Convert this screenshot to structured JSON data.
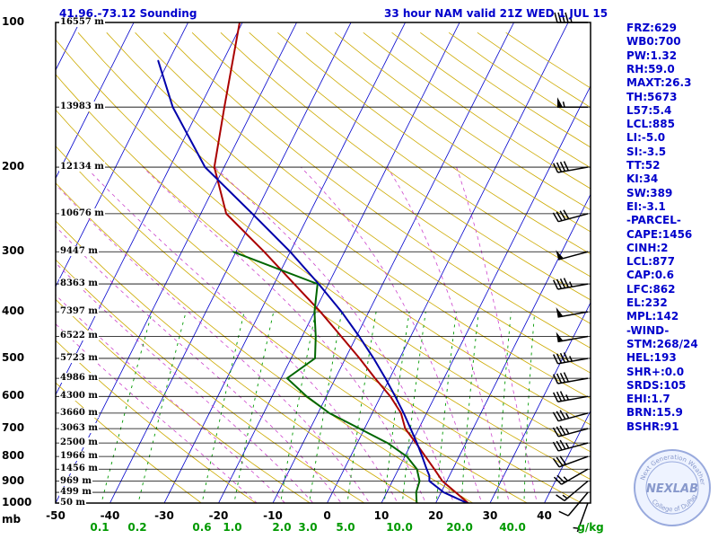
{
  "header": {
    "location": "41.96,-73.12 Sounding",
    "valid": "33 hour NAM valid 21Z WED  1 JUL 15"
  },
  "indices": [
    "FRZ:629",
    "WB0:700",
    "PW:1.32",
    "RH:59.0",
    "MAXT:26.3",
    "TH:5673",
    "L57:5.4",
    "LCL:885",
    "LI:-5.0",
    "SI:-3.5",
    "TT:52",
    "KI:34",
    "SW:389",
    "EI:-3.1",
    "-PARCEL-",
    "CAPE:1456",
    "CINH:2",
    "LCL:877",
    "CAP:0.6",
    "LFC:862",
    "EL:232",
    "MPL:142",
    "-WIND-",
    "STM:268/24",
    "HEL:193",
    "SHR+:0.0",
    "SRDS:105",
    "EHI:1.7",
    "BRN:15.9",
    "BSHR:91"
  ],
  "logo": {
    "text": "NEXLAB",
    "ring": "Next Generation Weather Lab",
    "ring2": "College of DuPage"
  },
  "colors": {
    "temperature": "#aa0000",
    "dewpoint": "#006600",
    "parcel": "#0000aa",
    "isotherm": "#0000cc",
    "dry_adiabat": "#ccaa00",
    "moist_adiabat": "#cc44cc",
    "mixing_ratio": "#009900"
  },
  "chart_data": {
    "type": "line",
    "xlabel": "",
    "ylabel": "mb",
    "pressure_levels": [
      100,
      200,
      300,
      400,
      500,
      600,
      700,
      800,
      900,
      1000
    ],
    "pressure_tick_labels": [
      "100",
      "200",
      "300",
      "400",
      "500",
      "600",
      "700",
      "800",
      "900",
      "1000"
    ],
    "temperature_ticks": [
      -50,
      -40,
      -30,
      -20,
      -10,
      0,
      10,
      20,
      30,
      40
    ],
    "temperature_tick_labels": [
      "-50",
      "-40",
      "-30",
      "-20",
      "-10",
      "0",
      "10",
      "20",
      "30",
      "40"
    ],
    "mixing_ratio_labels": [
      "0.1",
      "0.2",
      "0.6",
      "1.0",
      "2.0",
      "3.0",
      "5.0",
      "10.0",
      "20.0",
      "40.0",
      "g/kg"
    ],
    "height_labels": [
      {
        "p": 100,
        "text": "16557 m"
      },
      {
        "p": 150,
        "text": "13983 m"
      },
      {
        "p": 200,
        "text": "12134 m"
      },
      {
        "p": 250,
        "text": "10676 m"
      },
      {
        "p": 300,
        "text": "9447 m"
      },
      {
        "p": 350,
        "text": "8363 m"
      },
      {
        "p": 400,
        "text": "7397 m"
      },
      {
        "p": 450,
        "text": "6522 m"
      },
      {
        "p": 500,
        "text": "5723 m"
      },
      {
        "p": 550,
        "text": "4986 m"
      },
      {
        "p": 600,
        "text": "4300 m"
      },
      {
        "p": 650,
        "text": "3660 m"
      },
      {
        "p": 700,
        "text": "3063 m"
      },
      {
        "p": 750,
        "text": "2500 m"
      },
      {
        "p": 800,
        "text": "1966 m"
      },
      {
        "p": 850,
        "text": "1456 m"
      },
      {
        "p": 900,
        "text": "969 m"
      },
      {
        "p": 950,
        "text": "499 m"
      },
      {
        "p": 1000,
        "text": "50 m"
      }
    ],
    "series": [
      {
        "key": "temperature",
        "color": "#aa0000",
        "points": [
          [
            1005,
            26.3
          ],
          [
            950,
            22.7
          ],
          [
            900,
            19.2
          ],
          [
            850,
            16.6
          ],
          [
            800,
            13.8
          ],
          [
            750,
            10.8
          ],
          [
            700,
            7.5
          ],
          [
            650,
            5.3
          ],
          [
            600,
            1.8
          ],
          [
            550,
            -2.7
          ],
          [
            500,
            -7.4
          ],
          [
            450,
            -12.8
          ],
          [
            400,
            -18.9
          ],
          [
            350,
            -26.3
          ],
          [
            300,
            -34.8
          ],
          [
            250,
            -45.3
          ],
          [
            200,
            -51.8
          ],
          [
            150,
            -55.5
          ],
          [
            100,
            -60.5
          ]
        ]
      },
      {
        "key": "dewpoint",
        "color": "#006600",
        "points": [
          [
            1005,
            16.6
          ],
          [
            950,
            15.4
          ],
          [
            900,
            15.0
          ],
          [
            850,
            13.4
          ],
          [
            800,
            10.4
          ],
          [
            750,
            5.6
          ],
          [
            700,
            -0.9
          ],
          [
            650,
            -7.9
          ],
          [
            600,
            -13.6
          ],
          [
            550,
            -18.9
          ],
          [
            500,
            -15.6
          ],
          [
            450,
            -17.5
          ],
          [
            400,
            -20.0
          ],
          [
            350,
            -22.0
          ],
          [
            300,
            -40.5
          ]
        ]
      },
      {
        "key": "parcel",
        "color": "#0000aa",
        "points": [
          [
            1005,
            26.3
          ],
          [
            950,
            20.5
          ],
          [
            900,
            16.8
          ],
          [
            877,
            16.3
          ],
          [
            850,
            15.2
          ],
          [
            800,
            13.2
          ],
          [
            750,
            11.0
          ],
          [
            700,
            8.5
          ],
          [
            650,
            5.8
          ],
          [
            600,
            2.7
          ],
          [
            550,
            -0.8
          ],
          [
            500,
            -4.8
          ],
          [
            450,
            -9.5
          ],
          [
            400,
            -15.0
          ],
          [
            350,
            -21.8
          ],
          [
            300,
            -30.0
          ],
          [
            250,
            -40.5
          ],
          [
            200,
            -53.5
          ],
          [
            150,
            -65.0
          ],
          [
            120,
            -72.0
          ]
        ]
      }
    ],
    "winds": [
      {
        "p": 100,
        "dir": 270,
        "kt": 45
      },
      {
        "p": 150,
        "dir": 270,
        "kt": 55
      },
      {
        "p": 200,
        "dir": 260,
        "kt": 40
      },
      {
        "p": 250,
        "dir": 255,
        "kt": 40
      },
      {
        "p": 300,
        "dir": 255,
        "kt": 50
      },
      {
        "p": 350,
        "dir": 260,
        "kt": 45
      },
      {
        "p": 400,
        "dir": 260,
        "kt": 50
      },
      {
        "p": 450,
        "dir": 260,
        "kt": 50
      },
      {
        "p": 500,
        "dir": 260,
        "kt": 45
      },
      {
        "p": 550,
        "dir": 260,
        "kt": 40
      },
      {
        "p": 600,
        "dir": 260,
        "kt": 35
      },
      {
        "p": 650,
        "dir": 255,
        "kt": 35
      },
      {
        "p": 700,
        "dir": 255,
        "kt": 35
      },
      {
        "p": 750,
        "dir": 255,
        "kt": 35
      },
      {
        "p": 800,
        "dir": 250,
        "kt": 30
      },
      {
        "p": 850,
        "dir": 240,
        "kt": 25
      },
      {
        "p": 900,
        "dir": 230,
        "kt": 15
      },
      {
        "p": 950,
        "dir": 220,
        "kt": 10
      },
      {
        "p": 1000,
        "dir": 200,
        "kt": 5
      }
    ]
  }
}
